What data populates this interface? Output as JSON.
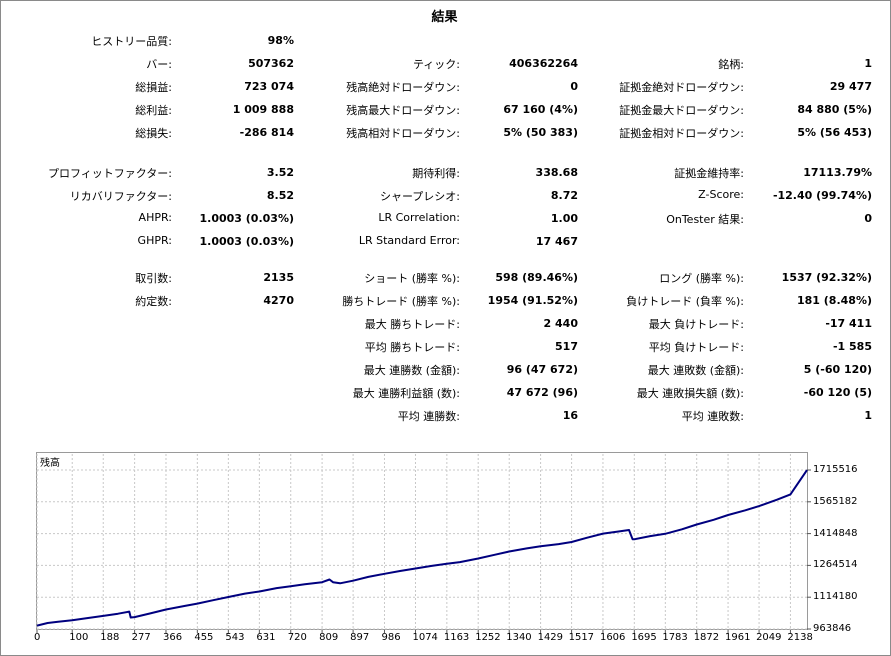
{
  "title": "結果",
  "stats": {
    "history_quality": {
      "label": "ヒストリー品質:",
      "value": "98%"
    },
    "bars": {
      "label": "バー:",
      "value": "507362"
    },
    "ticks": {
      "label": "ティック:",
      "value": "406362264"
    },
    "symbol": {
      "label": "銘柄:",
      "value": "1"
    },
    "total_net_profit": {
      "label": "総損益:",
      "value": "723 074"
    },
    "balance_dd_absolute": {
      "label": "残高絶対ドローダウン:",
      "value": "0"
    },
    "equity_dd_absolute": {
      "label": "証拠金絶対ドローダウン:",
      "value": "29 477"
    },
    "gross_profit": {
      "label": "総利益:",
      "value": "1 009 888"
    },
    "balance_dd_maximal": {
      "label": "残高最大ドローダウン:",
      "value": "67 160 (4%)"
    },
    "equity_dd_maximal": {
      "label": "証拠金最大ドローダウン:",
      "value": "84 880 (5%)"
    },
    "gross_loss": {
      "label": "総損失:",
      "value": "-286 814"
    },
    "balance_dd_relative": {
      "label": "残高相対ドローダウン:",
      "value": "5% (50 383)"
    },
    "equity_dd_relative": {
      "label": "証拠金相対ドローダウン:",
      "value": "5% (56 453)"
    },
    "profit_factor": {
      "label": "プロフィットファクター:",
      "value": "3.52"
    },
    "expected_payoff": {
      "label": "期待利得:",
      "value": "338.68"
    },
    "margin_level": {
      "label": "証拠金維持率:",
      "value": "17113.79%"
    },
    "recovery_factor": {
      "label": "リカバリファクター:",
      "value": "8.52"
    },
    "sharpe_ratio": {
      "label": "シャープレシオ:",
      "value": "8.72"
    },
    "z_score": {
      "label": "Z-Score:",
      "value": "-12.40 (99.74%)"
    },
    "ahpr": {
      "label": "AHPR:",
      "value": "1.0003 (0.03%)"
    },
    "lr_correlation": {
      "label": "LR Correlation:",
      "value": "1.00"
    },
    "ontester": {
      "label": "OnTester 結果:",
      "value": "0"
    },
    "ghpr": {
      "label": "GHPR:",
      "value": "1.0003 (0.03%)"
    },
    "lr_std_error": {
      "label": "LR Standard Error:",
      "value": "17 467"
    },
    "total_trades": {
      "label": "取引数:",
      "value": "2135"
    },
    "short_trades": {
      "label": "ショート (勝率 %):",
      "value": "598 (89.46%)"
    },
    "long_trades": {
      "label": "ロング (勝率 %):",
      "value": "1537 (92.32%)"
    },
    "total_deals": {
      "label": "約定数:",
      "value": "4270"
    },
    "profit_trades": {
      "label": "勝ちトレード (勝率 %):",
      "value": "1954 (91.52%)"
    },
    "loss_trades": {
      "label": "負けトレード (負率 %):",
      "value": "181 (8.48%)"
    },
    "largest_profit": {
      "label": "最大 勝ちトレード:",
      "value": "2 440"
    },
    "largest_loss": {
      "label": "最大 負けトレード:",
      "value": "-17 411"
    },
    "average_profit": {
      "label": "平均 勝ちトレード:",
      "value": "517"
    },
    "average_loss": {
      "label": "平均 負けトレード:",
      "value": "-1 585"
    },
    "max_consec_wins": {
      "label": "最大 連勝数 (金額):",
      "value": "96 (47 672)"
    },
    "max_consec_losses": {
      "label": "最大 連敗数 (金額):",
      "value": "5 (-60 120)"
    },
    "max_consec_profit": {
      "label": "最大 連勝利益額 (数):",
      "value": "47 672 (96)"
    },
    "max_consec_loss": {
      "label": "最大 連敗損失額 (数):",
      "value": "-60 120 (5)"
    },
    "avg_consec_wins": {
      "label": "平均 連勝数:",
      "value": "16"
    },
    "avg_consec_losses": {
      "label": "平均 連敗数:",
      "value": "1"
    }
  },
  "chart_data": {
    "type": "line",
    "title": "残高",
    "x_ticks": [
      "0",
      "100",
      "188",
      "277",
      "366",
      "455",
      "543",
      "631",
      "720",
      "809",
      "897",
      "986",
      "1074",
      "1163",
      "1252",
      "1340",
      "1429",
      "1517",
      "1606",
      "1695",
      "1783",
      "1872",
      "1961",
      "2049",
      "2138"
    ],
    "y_ticks": [
      "1715516",
      "1565182",
      "1414848",
      "1264514",
      "1114180",
      "963846"
    ],
    "xlim": [
      0,
      2185
    ],
    "ylim": [
      963846,
      1715516
    ],
    "grid": true,
    "line_color": "#00007f",
    "series": [
      {
        "x": [
          0,
          30,
          60,
          100,
          140,
          188,
          230,
          262,
          266,
          277,
          320,
          366,
          420,
          455,
          500,
          543,
          590,
          631,
          680,
          720,
          760,
          809,
          830,
          840,
          860,
          897,
          940,
          986,
          1030,
          1074,
          1120,
          1163,
          1200,
          1252,
          1300,
          1340,
          1390,
          1429,
          1480,
          1517,
          1560,
          1606,
          1650,
          1680,
          1690,
          1695,
          1740,
          1783,
          1830,
          1872,
          1920,
          1961,
          2010,
          2049,
          2100,
          2138,
          2185
        ],
        "y": [
          980000,
          992000,
          998000,
          1005000,
          1015000,
          1026000,
          1036000,
          1046000,
          1018000,
          1020000,
          1037000,
          1056000,
          1073000,
          1084000,
          1100000,
          1115000,
          1131000,
          1141000,
          1157000,
          1166000,
          1175000,
          1185000,
          1198000,
          1185000,
          1180000,
          1192000,
          1210000,
          1225000,
          1238000,
          1250000,
          1262000,
          1272000,
          1280000,
          1297000,
          1315000,
          1330000,
          1345000,
          1355000,
          1365000,
          1375000,
          1395000,
          1415000,
          1425000,
          1432000,
          1388000,
          1388000,
          1403000,
          1414000,
          1435000,
          1458000,
          1480000,
          1503000,
          1525000,
          1545000,
          1575000,
          1600000,
          1715516
        ]
      }
    ]
  }
}
